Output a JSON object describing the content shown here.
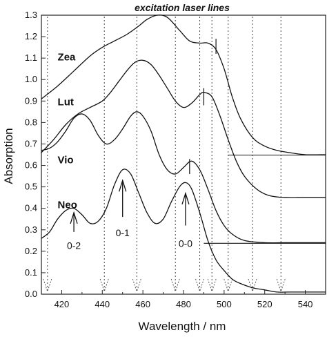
{
  "chart_data": {
    "type": "line",
    "title": "excitation laser lines",
    "xlabel": "Wavelength / nm",
    "ylabel": "Absorption",
    "xlim": [
      410,
      550
    ],
    "ylim": [
      0.0,
      1.3
    ],
    "xticks": [
      420,
      440,
      460,
      480,
      500,
      520,
      540
    ],
    "yticks": [
      0.0,
      0.1,
      0.2,
      0.3,
      0.4,
      0.5,
      0.6,
      0.7,
      0.8,
      0.9,
      1.0,
      1.1,
      1.2,
      1.3
    ],
    "grid": false,
    "series": [
      {
        "name": "Zea",
        "x": [
          410,
          418,
          426,
          434,
          440,
          446,
          452,
          458,
          462,
          467,
          472,
          478,
          483,
          488,
          492,
          496,
          500,
          504,
          508,
          514,
          520,
          526,
          532,
          540,
          550
        ],
        "y": [
          0.91,
          0.97,
          1.04,
          1.11,
          1.15,
          1.18,
          1.21,
          1.25,
          1.28,
          1.3,
          1.29,
          1.23,
          1.18,
          1.17,
          1.17,
          1.14,
          1.05,
          0.92,
          0.82,
          0.73,
          0.69,
          0.67,
          0.66,
          0.65,
          0.65
        ],
        "marker_x": 496
      },
      {
        "name": "Lut",
        "x": [
          410,
          416,
          422,
          428,
          434,
          440,
          444,
          448,
          452,
          456,
          460,
          464,
          468,
          472,
          476,
          480,
          484,
          488,
          490,
          494,
          498,
          502,
          506,
          510,
          516,
          522,
          530,
          540,
          550
        ],
        "y": [
          0.66,
          0.72,
          0.79,
          0.84,
          0.87,
          0.9,
          0.94,
          0.99,
          1.04,
          1.08,
          1.09,
          1.07,
          1.02,
          0.96,
          0.9,
          0.87,
          0.89,
          0.93,
          0.94,
          0.92,
          0.83,
          0.72,
          0.62,
          0.55,
          0.49,
          0.46,
          0.45,
          0.45,
          0.45
        ]
      },
      {
        "name": "Vio",
        "x": [
          410,
          414,
          418,
          422,
          426,
          430,
          434,
          438,
          442,
          446,
          450,
          454,
          457,
          460,
          464,
          468,
          472,
          476,
          480,
          484,
          488,
          492,
          496,
          500,
          504,
          510,
          520,
          530,
          540,
          550
        ],
        "y": [
          0.67,
          0.68,
          0.71,
          0.76,
          0.82,
          0.84,
          0.81,
          0.74,
          0.7,
          0.72,
          0.77,
          0.83,
          0.85,
          0.83,
          0.76,
          0.65,
          0.58,
          0.56,
          0.59,
          0.62,
          0.58,
          0.49,
          0.39,
          0.32,
          0.28,
          0.25,
          0.24,
          0.24,
          0.24,
          0.24
        ]
      },
      {
        "name": "Neo",
        "x": [
          410,
          414,
          418,
          422,
          426,
          430,
          434,
          438,
          442,
          446,
          450,
          454,
          458,
          462,
          466,
          470,
          474,
          478,
          481,
          484,
          488,
          492,
          496,
          500,
          504,
          508,
          514,
          520,
          526,
          532,
          540,
          550
        ],
        "y": [
          0.26,
          0.29,
          0.35,
          0.39,
          0.4,
          0.37,
          0.33,
          0.34,
          0.4,
          0.51,
          0.58,
          0.56,
          0.47,
          0.38,
          0.33,
          0.35,
          0.43,
          0.5,
          0.52,
          0.49,
          0.38,
          0.25,
          0.16,
          0.11,
          0.07,
          0.05,
          0.03,
          0.02,
          0.01,
          0.01,
          0.01,
          0.01
        ]
      }
    ],
    "flat_lines": [
      {
        "x": [
          502,
          550
        ],
        "y": 0.648
      },
      {
        "x": [
          490,
          550
        ],
        "y": 0.237
      }
    ],
    "laser_lines": [
      413,
      441,
      457,
      476,
      488,
      494,
      502,
      514,
      528
    ],
    "peak_markers": [
      {
        "x": 496,
        "y": [
          1.12,
          1.19
        ]
      },
      {
        "x": 490,
        "y": [
          0.88,
          0.96
        ]
      },
      {
        "x": 483,
        "y": [
          0.56,
          0.63
        ]
      }
    ],
    "annotations": [
      {
        "text": "0-2",
        "x": 426,
        "y_text": 0.21,
        "arrow_from": 0.29,
        "arrow_to": 0.38
      },
      {
        "text": "0-1",
        "x": 450,
        "y_text": 0.27,
        "arrow_from": 0.36,
        "arrow_to": 0.53
      },
      {
        "text": "0-0",
        "x": 481,
        "y_text": 0.22,
        "arrow_from": 0.32,
        "arrow_to": 0.47
      }
    ],
    "series_labels": [
      {
        "text": "Zea",
        "x": 418,
        "y": 1.09
      },
      {
        "text": "Lut",
        "x": 418,
        "y": 0.88
      },
      {
        "text": "Vio",
        "x": 418,
        "y": 0.61
      },
      {
        "text": "Neo",
        "x": 418,
        "y": 0.4
      }
    ]
  }
}
